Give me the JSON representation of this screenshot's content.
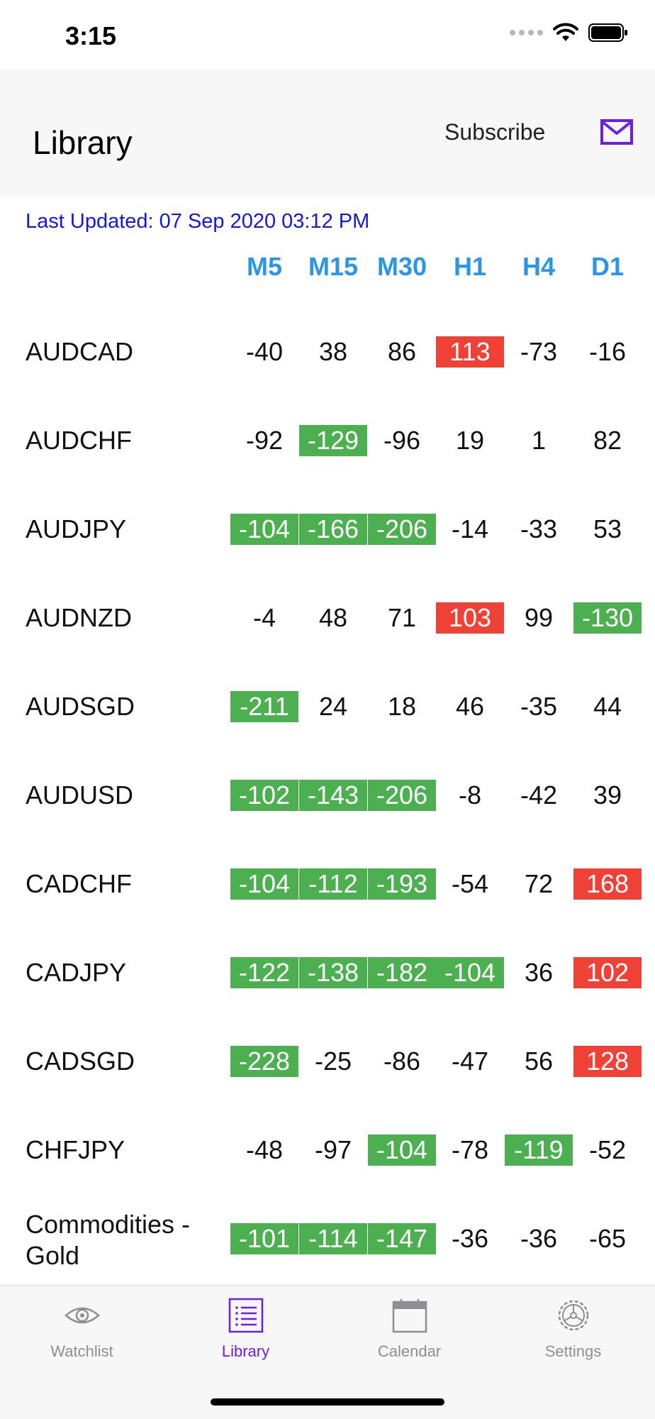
{
  "status_bar": {
    "time": "3:15"
  },
  "header": {
    "title": "Library",
    "subscribe_label": "Subscribe",
    "mail_icon": "mail-icon"
  },
  "last_updated": "Last Updated: 07 Sep 2020 03:12 PM",
  "columns": [
    "M5",
    "M15",
    "M30",
    "H1",
    "H4",
    "D1"
  ],
  "colors": {
    "positive_strong": "#ef4136",
    "negative_strong": "#4caf50",
    "accent": "#6a1ee6",
    "column_header": "#2b95e9",
    "timestamp": "#1515e6"
  },
  "rows": [
    {
      "symbol": "AUDCAD",
      "values": [
        "-40",
        "38",
        "86",
        "113",
        "-73",
        "-16"
      ],
      "highlights": [
        "",
        "",
        "",
        "red",
        "",
        ""
      ]
    },
    {
      "symbol": "AUDCHF",
      "values": [
        "-92",
        "-129",
        "-96",
        "19",
        "1",
        "82"
      ],
      "highlights": [
        "",
        "green",
        "",
        "",
        "",
        ""
      ]
    },
    {
      "symbol": "AUDJPY",
      "values": [
        "-104",
        "-166",
        "-206",
        "-14",
        "-33",
        "53"
      ],
      "highlights": [
        "green",
        "green",
        "green",
        "",
        "",
        ""
      ]
    },
    {
      "symbol": "AUDNZD",
      "values": [
        "-4",
        "48",
        "71",
        "103",
        "99",
        "-130"
      ],
      "highlights": [
        "",
        "",
        "",
        "red",
        "",
        "green"
      ]
    },
    {
      "symbol": "AUDSGD",
      "values": [
        "-211",
        "24",
        "18",
        "46",
        "-35",
        "44"
      ],
      "highlights": [
        "green",
        "",
        "",
        "",
        "",
        ""
      ]
    },
    {
      "symbol": "AUDUSD",
      "values": [
        "-102",
        "-143",
        "-206",
        "-8",
        "-42",
        "39"
      ],
      "highlights": [
        "green",
        "green",
        "green",
        "",
        "",
        ""
      ]
    },
    {
      "symbol": "CADCHF",
      "values": [
        "-104",
        "-112",
        "-193",
        "-54",
        "72",
        "168"
      ],
      "highlights": [
        "green",
        "green",
        "green",
        "",
        "",
        "red"
      ]
    },
    {
      "symbol": "CADJPY",
      "values": [
        "-122",
        "-138",
        "-182",
        "-104",
        "36",
        "102"
      ],
      "highlights": [
        "green",
        "green",
        "green",
        "green",
        "",
        "red"
      ]
    },
    {
      "symbol": "CADSGD",
      "values": [
        "-228",
        "-25",
        "-86",
        "-47",
        "56",
        "128"
      ],
      "highlights": [
        "green",
        "",
        "",
        "",
        "",
        "red"
      ]
    },
    {
      "symbol": "CHFJPY",
      "values": [
        "-48",
        "-97",
        "-104",
        "-78",
        "-119",
        "-52"
      ],
      "highlights": [
        "",
        "",
        "green",
        "",
        "green",
        ""
      ]
    },
    {
      "symbol": "Commodities - Gold",
      "values": [
        "-101",
        "-114",
        "-147",
        "-36",
        "-36",
        "-65"
      ],
      "highlights": [
        "green",
        "green",
        "green",
        "",
        "",
        ""
      ]
    }
  ],
  "tabs": [
    {
      "label": "Watchlist",
      "icon": "eye-icon",
      "active": false
    },
    {
      "label": "Library",
      "icon": "list-icon",
      "active": true
    },
    {
      "label": "Calendar",
      "icon": "calendar-icon",
      "active": false
    },
    {
      "label": "Settings",
      "icon": "gear-icon",
      "active": false
    }
  ]
}
